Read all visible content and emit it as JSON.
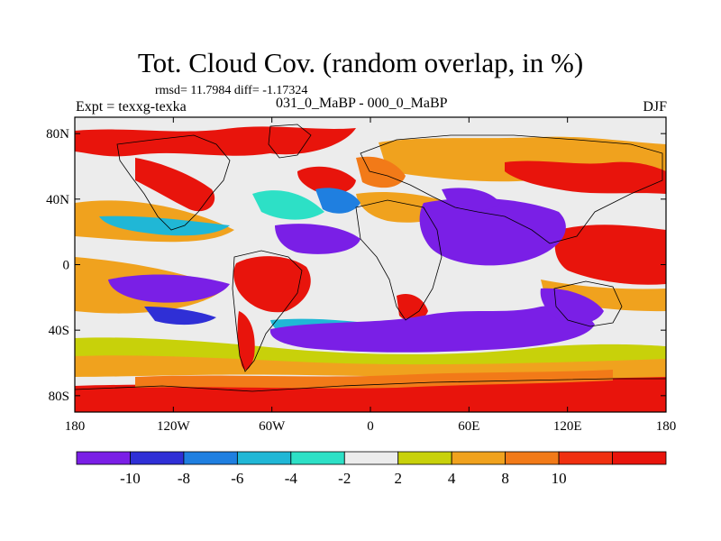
{
  "title": "Tot. Cloud Cov. (random overlap, in %)",
  "stats": "rmsd= 11.7984  diff= -1.17324",
  "expt": "Expt = texxg-texka",
  "subtitle": "031_0_MaBP - 000_0_MaBP",
  "season": "DJF",
  "map": {
    "lon_range": [
      -180,
      180
    ],
    "lat_range": [
      -90,
      90
    ],
    "x_tick_labels": [
      "180",
      "120W",
      "60W",
      "0",
      "60E",
      "120E",
      "180"
    ],
    "y_tick_labels": [
      "80N",
      "40N",
      "0",
      "40S",
      "80S"
    ]
  },
  "colorbar": {
    "levels": [
      "-10",
      "-8",
      "-6",
      "-4",
      "-2",
      "2",
      "4",
      "8",
      "10"
    ],
    "colors": [
      "#7a1fe6",
      "#2f2fd6",
      "#1f7fe0",
      "#20b7d6",
      "#2de0c6",
      "#ececec",
      "#c8d10a",
      "#f0a21e",
      "#f27a18",
      "#f03010",
      "#e8140c"
    ]
  }
}
